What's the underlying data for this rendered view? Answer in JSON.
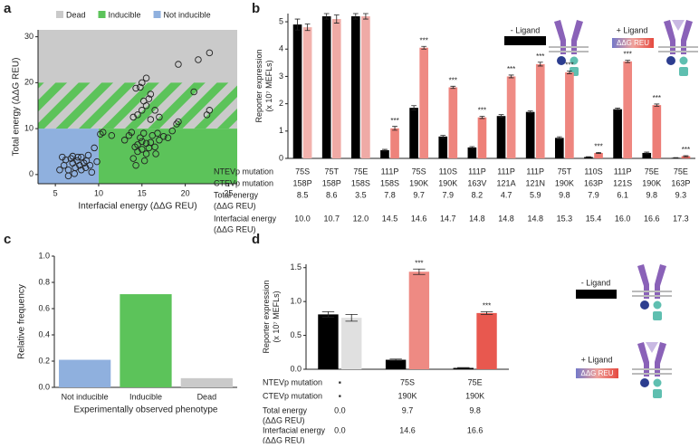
{
  "chart_data": [
    {
      "type": "scatter",
      "panel_label": "a",
      "xlabel": "Interfacial energy (ΔΔG REU)",
      "ylabel": "Total energy (ΔΔG REU)",
      "xlim": [
        3,
        26
      ],
      "ylim": [
        -2,
        31.5
      ],
      "xticks": [
        5,
        10,
        15,
        20,
        25
      ],
      "yticks": [
        0,
        10,
        20,
        30
      ],
      "regions": [
        {
          "name": "Dead",
          "color": "#cacaca",
          "xrange": [
            3,
            26
          ],
          "yrange": [
            10,
            31.5
          ]
        },
        {
          "name": "Inducible",
          "color": "#5cc35a",
          "xrange": [
            10,
            26
          ],
          "yrange": [
            -2,
            10
          ]
        },
        {
          "name": "Not inducible",
          "color": "#8fb0de",
          "xrange": [
            3,
            10
          ],
          "yrange": [
            -2,
            10
          ]
        }
      ],
      "hatch": {
        "color": "#5cc35a",
        "yrange": [
          10,
          20
        ]
      },
      "marker_color": "#222",
      "x": [
        5.5,
        6,
        6.2,
        6.5,
        6.8,
        7,
        7,
        7.3,
        7.5,
        7.8,
        8,
        8,
        8.3,
        8.5,
        8.6,
        9,
        9.2,
        6.5,
        7.2,
        5.8,
        9.5,
        8.8,
        7.6,
        9.8,
        10.2,
        11.5,
        13,
        13.5,
        14,
        14.2,
        14.5,
        14.5,
        14.8,
        15,
        15,
        15.2,
        15.5,
        15.5,
        15.8,
        16,
        16.2,
        16.5,
        16.8,
        17,
        17.5,
        18,
        14.3,
        15.3,
        13.8,
        18.5,
        16.6,
        10.5,
        14,
        14.5,
        15,
        15.2,
        15.5,
        15.8,
        16,
        16.5,
        14.8,
        14.3,
        15,
        15.5,
        16,
        17,
        19,
        19.2,
        21,
        22.5,
        22.8,
        19.2,
        21.5,
        22.8
      ],
      "y": [
        1,
        2,
        3.2,
        1,
        3.5,
        4,
        2.5,
        1.5,
        3,
        2,
        1,
        3.8,
        2.5,
        1.5,
        3,
        2,
        0.5,
        -0.3,
        0.2,
        3.8,
        5.8,
        4.2,
        3.8,
        2.8,
        8.8,
        8.5,
        7.5,
        8.5,
        3.5,
        6,
        5,
        6.5,
        8,
        7.2,
        5.5,
        9,
        6.8,
        4.5,
        5.8,
        7,
        8.5,
        6,
        9,
        7.5,
        8.3,
        8,
        2,
        3,
        9.2,
        9.5,
        4.5,
        9.2,
        12.5,
        13,
        14,
        16,
        15,
        16.5,
        17.5,
        14,
        19,
        18.8,
        20,
        21,
        12,
        12.5,
        11,
        11.5,
        18,
        13,
        14,
        24,
        25,
        26.5
      ]
    },
    {
      "type": "bar",
      "panel_label": "b",
      "ylabel": [
        "Reporter expression",
        "(x 10⁷ MEFLs)"
      ],
      "ylim": [
        0,
        5.3
      ],
      "yticks": [
        0,
        1,
        2,
        3,
        4,
        5
      ],
      "series": [
        {
          "name": "- Ligand",
          "color": "#000000",
          "values": [
            4.9,
            5.2,
            5.2,
            0.3,
            1.85,
            0.8,
            0.4,
            1.55,
            1.7,
            0.75,
            0.05,
            1.8,
            0.2,
            0.02
          ],
          "errors": [
            0.2,
            0.1,
            0.1,
            0.03,
            0.08,
            0.04,
            0.03,
            0.05,
            0.04,
            0.04,
            0.01,
            0.04,
            0.03,
            0.01
          ]
        },
        {
          "name": "+ Ligand",
          "color": "#ee857e",
          "colors": [
            "#f2b2ad",
            "#f0aaa5",
            "#efaaa6",
            "#ee837b",
            "#ef8a83",
            "#ee857e",
            "#ee8078",
            "#ef8c85",
            "#ef8a83",
            "#ee857e",
            "#ec7a73",
            "#ef8780",
            "#ec7d76",
            "#e86a62"
          ],
          "values": [
            4.8,
            5.1,
            5.2,
            1.1,
            4.05,
            2.6,
            1.5,
            3.0,
            3.45,
            3.15,
            0.2,
            3.55,
            1.95,
            0.08
          ],
          "errors": [
            0.12,
            0.15,
            0.1,
            0.07,
            0.05,
            0.04,
            0.04,
            0.05,
            0.07,
            0.05,
            0.02,
            0.04,
            0.04,
            0.02
          ],
          "significance": [
            null,
            null,
            null,
            "***",
            "***",
            "***",
            "***",
            "***",
            "***",
            "***",
            "***",
            "***",
            "***",
            "***"
          ]
        }
      ],
      "gradient": [
        "#7479c9",
        "#efa19b",
        "#e5493f"
      ],
      "gradient_label": "ΔΔG REU",
      "table": {
        "rows": [
          {
            "label": [
              "NTEVp mutation"
            ],
            "cells": [
              "75S",
              "75T",
              "75E",
              "111P",
              "75S",
              "110S",
              "111P",
              "111P",
              "111P",
              "75T",
              "110S",
              "111P",
              "75E",
              "75E"
            ]
          },
          {
            "label": [
              "CTEVp mutation"
            ],
            "cells": [
              "158P",
              "158P",
              "158S",
              "158S",
              "190K",
              "190K",
              "163V",
              "121A",
              "121N",
              "190K",
              "163P",
              "121S",
              "190K",
              "163P"
            ]
          },
          {
            "label": [
              "Total energy",
              "(ΔΔG REU)"
            ],
            "cells": [
              "8.5",
              "8.6",
              "3.5",
              "7.8",
              "9.7",
              "7.9",
              "8.2",
              "4.7",
              "5.9",
              "9.8",
              "7.9",
              "6.1",
              "9.8",
              "9.3"
            ]
          },
          {
            "label": [
              "Interfacial energy",
              "(ΔΔG REU)"
            ],
            "cells": [
              "10.0",
              "10.7",
              "12.0",
              "14.5",
              "14.6",
              "14.7",
              "14.8",
              "14.8",
              "14.8",
              "15.3",
              "15.4",
              "16.0",
              "16.6",
              "17.3"
            ]
          }
        ]
      }
    },
    {
      "type": "bar",
      "panel_label": "c",
      "ylabel": "Relative frequency",
      "xlabel": "Experimentally observed phenotype",
      "ylim": [
        0,
        1
      ],
      "yticks": [
        {
          "value": 0,
          "label": "0.0"
        },
        {
          "value": 0.2,
          "label": "0.2"
        },
        {
          "value": 0.4,
          "label": "0.4"
        },
        {
          "value": 0.6,
          "label": "0.6"
        },
        {
          "value": 0.8,
          "label": "0.8"
        },
        {
          "value": 1,
          "label": "1.0"
        }
      ],
      "categories": [
        "Not inducible",
        "Inducible",
        "Dead"
      ],
      "values": [
        0.21,
        0.71,
        0.07
      ],
      "colors": [
        "#8fb0de",
        "#5cc35a",
        "#cacaca"
      ]
    },
    {
      "type": "bar",
      "panel_label": "d",
      "ylabel": [
        "Reporter expression",
        "(x 10⁷ MEFLs)"
      ],
      "ylim": [
        0,
        1.55
      ],
      "yticks": [
        {
          "value": 0,
          "label": "0.0"
        },
        {
          "value": 0.5,
          "label": "0.5"
        },
        {
          "value": 1,
          "label": "1.0"
        },
        {
          "value": 1.5,
          "label": "1.5"
        }
      ],
      "series": [
        {
          "name": "- Ligand",
          "color": "#000000",
          "values": [
            0.81,
            0.14,
            0.02
          ],
          "errors": [
            0.04,
            0.01,
            0.005
          ]
        },
        {
          "name": "+ Ligand",
          "color": "#ee8a83",
          "colors": [
            "#e0e0e0",
            "#ee8a83",
            "#e8584f"
          ],
          "values": [
            0.76,
            1.44,
            0.83
          ],
          "errors": [
            0.05,
            0.04,
            0.02
          ],
          "significance": [
            null,
            "***",
            "***"
          ]
        }
      ],
      "gradient": [
        "#7479c9",
        "#efa19b",
        "#e5493f"
      ],
      "gradient_label": "ΔΔG REU",
      "table": {
        "rows": [
          {
            "label": [
              "NTEVp mutation"
            ],
            "cells": [
              "▪",
              "75S",
              "75E"
            ]
          },
          {
            "label": [
              "CTEVp mutation"
            ],
            "cells": [
              "▪",
              "190K",
              "190K"
            ]
          },
          {
            "label": [
              "Total energy",
              "(ΔΔG REU)"
            ],
            "cells": [
              "0.0",
              "9.7",
              "9.8"
            ]
          },
          {
            "label": [
              "Interfacial energy",
              "(ΔΔG REU)"
            ],
            "cells": [
              "0.0",
              "14.6",
              "16.6"
            ]
          }
        ]
      }
    }
  ]
}
